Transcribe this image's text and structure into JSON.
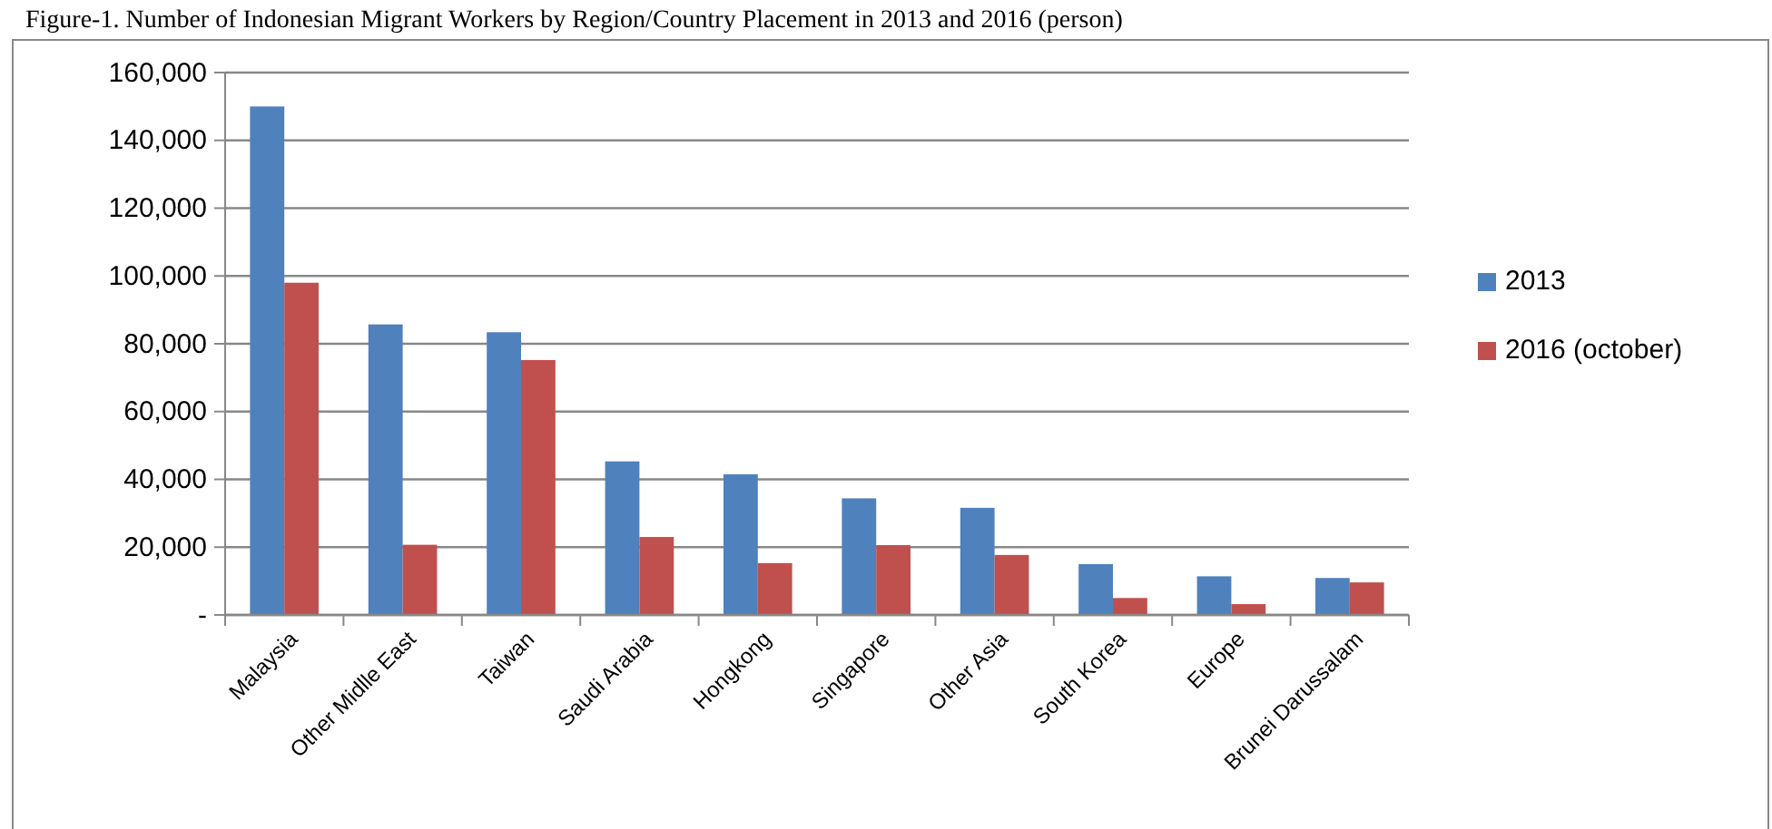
{
  "chart_data": {
    "type": "bar",
    "title": "Figure-1. Number of Indonesian Migrant Workers by Region/Country Placement in 2013 and 2016 (person)",
    "categories": [
      "Malaysia",
      "Other Midlle East",
      "Taiwan",
      "Saudi Arabia",
      "Hongkong",
      "Singapore",
      "Other Asia",
      "South Korea",
      "Europe",
      "Brunei Darussalam"
    ],
    "series": [
      {
        "name": "2013",
        "color": "#4f81bd",
        "values": [
          150000,
          85700,
          83400,
          45300,
          41500,
          34400,
          31600,
          15000,
          11400,
          10900
        ]
      },
      {
        "name": "2016 (october)",
        "color": "#c0504d",
        "values": [
          98000,
          20700,
          75200,
          23000,
          15300,
          20600,
          17700,
          5000,
          3200,
          9600
        ]
      }
    ],
    "ylim": [
      0,
      160000
    ],
    "yticks": [
      {
        "value": 0,
        "label": "-"
      },
      {
        "value": 20000,
        "label": "20,000"
      },
      {
        "value": 40000,
        "label": "40,000"
      },
      {
        "value": 60000,
        "label": "60,000"
      },
      {
        "value": 80000,
        "label": "80,000"
      },
      {
        "value": 100000,
        "label": "100,000"
      },
      {
        "value": 120000,
        "label": "120,000"
      },
      {
        "value": 140000,
        "label": "140,000"
      },
      {
        "value": 160000,
        "label": "160,000"
      }
    ],
    "grid": "y",
    "legend": "right"
  }
}
